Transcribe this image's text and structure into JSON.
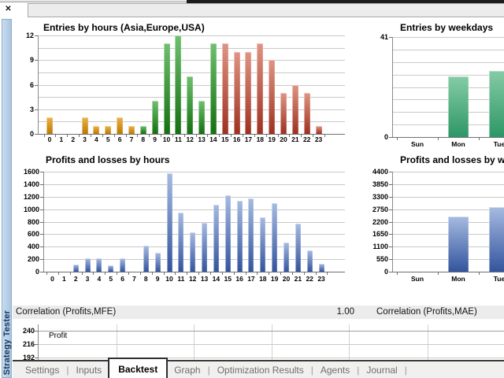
{
  "panel": {
    "vertical_title": "Strategy Tester",
    "close_icon": "✕"
  },
  "correlation": {
    "left_label": "Correlation (Profits,MFE)",
    "left_value": "1.00",
    "right_label": "Correlation (Profits,MAE)"
  },
  "tabs": {
    "items": [
      {
        "label": "Settings",
        "active": false,
        "separator_after": true
      },
      {
        "label": "Inputs",
        "active": false,
        "separator_after": false
      },
      {
        "label": "Backtest",
        "active": true,
        "separator_after": false
      },
      {
        "label": "Graph",
        "active": false,
        "separator_after": true
      },
      {
        "label": "Optimization Results",
        "active": false,
        "separator_after": true
      },
      {
        "label": "Agents",
        "active": false,
        "separator_after": true
      },
      {
        "label": "Journal",
        "active": false,
        "separator_after": true
      }
    ]
  },
  "chart_data": [
    {
      "type": "bar",
      "title": "Entries by hours (Asia,Europe,USA)",
      "categories": [
        "0",
        "1",
        "2",
        "3",
        "4",
        "5",
        "6",
        "7",
        "8",
        "9",
        "10",
        "11",
        "12",
        "13",
        "14",
        "15",
        "16",
        "17",
        "18",
        "19",
        "20",
        "21",
        "22",
        "23"
      ],
      "values": [
        2,
        0,
        0,
        2,
        1,
        1,
        2,
        1,
        1,
        4,
        11,
        12,
        7,
        4,
        11,
        11,
        10,
        10,
        11,
        9,
        5,
        6,
        5,
        1
      ],
      "ylim": [
        0,
        12
      ],
      "ytick_labels": [
        0,
        3,
        6,
        9,
        12
      ],
      "grid_step": 1.5,
      "series_segments": [
        {
          "name": "Asia",
          "from": 0,
          "to": 7,
          "color_top": "#EDB14C",
          "color_bottom": "#BA7A00"
        },
        {
          "name": "Europe",
          "from": 8,
          "to": 14,
          "color_top": "#6FC06F",
          "color_bottom": "#13700F"
        },
        {
          "name": "USA",
          "from": 15,
          "to": 23,
          "color_top": "#E09484",
          "color_bottom": "#9E3120"
        }
      ]
    },
    {
      "type": "bar",
      "title": "Entries by weekdays",
      "categories": [
        "Sun",
        "Mon",
        "Tue"
      ],
      "values": [
        0,
        25,
        27
      ],
      "ylim": [
        0,
        41
      ],
      "ytick_labels": [
        0,
        41
      ],
      "grid_step": 5.125,
      "color_top": "#85CBA6",
      "color_bottom": "#2D9766"
    },
    {
      "type": "bar",
      "title": "Profits and losses by hours",
      "categories": [
        "0",
        "1",
        "2",
        "3",
        "4",
        "5",
        "6",
        "7",
        "8",
        "9",
        "10",
        "11",
        "12",
        "13",
        "14",
        "15",
        "16",
        "17",
        "18",
        "19",
        "20",
        "21",
        "22",
        "23"
      ],
      "values": [
        0,
        0,
        110,
        215,
        215,
        105,
        220,
        0,
        420,
        305,
        1575,
        945,
        630,
        785,
        1075,
        1220,
        1130,
        1175,
        875,
        1090,
        465,
        765,
        345,
        125
      ],
      "ylim": [
        0,
        1600
      ],
      "ytick_labels": [
        0,
        200,
        400,
        600,
        800,
        1000,
        1200,
        1400,
        1600
      ],
      "grid_step": 200,
      "color_top": "#A6BBE1",
      "color_bottom": "#33549E"
    },
    {
      "type": "bar",
      "title": "Profits and losses by weekdays",
      "categories": [
        "Sun",
        "Mon",
        "Tue"
      ],
      "values": [
        0,
        2420,
        2830
      ],
      "ylim": [
        0,
        4400
      ],
      "ytick_labels": [
        0,
        550,
        1100,
        1650,
        2200,
        2750,
        3300,
        3850,
        4400
      ],
      "grid_step": 550,
      "color_top": "#A6BBE1",
      "color_bottom": "#33549E"
    },
    {
      "type": "line",
      "series_label": "Profit",
      "ytick_labels": [
        240,
        216,
        192
      ]
    }
  ]
}
